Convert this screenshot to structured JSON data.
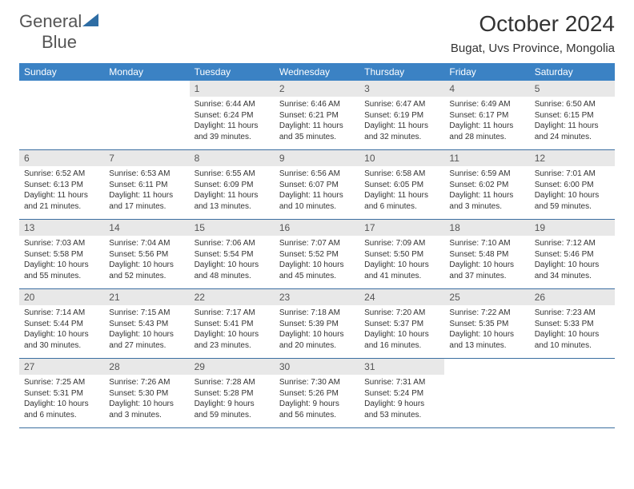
{
  "brand": {
    "text1": "General",
    "text2": "Blue"
  },
  "title": "October 2024",
  "location": "Bugat, Uvs Province, Mongolia",
  "colors": {
    "header_bg": "#3b82c4",
    "header_text": "#ffffff",
    "daynum_bg": "#e8e8e8",
    "border": "#3b6ea0"
  },
  "day_names": [
    "Sunday",
    "Monday",
    "Tuesday",
    "Wednesday",
    "Thursday",
    "Friday",
    "Saturday"
  ],
  "weeks": [
    [
      null,
      null,
      {
        "n": "1",
        "sr": "Sunrise: 6:44 AM",
        "ss": "Sunset: 6:24 PM",
        "dl": "Daylight: 11 hours and 39 minutes."
      },
      {
        "n": "2",
        "sr": "Sunrise: 6:46 AM",
        "ss": "Sunset: 6:21 PM",
        "dl": "Daylight: 11 hours and 35 minutes."
      },
      {
        "n": "3",
        "sr": "Sunrise: 6:47 AM",
        "ss": "Sunset: 6:19 PM",
        "dl": "Daylight: 11 hours and 32 minutes."
      },
      {
        "n": "4",
        "sr": "Sunrise: 6:49 AM",
        "ss": "Sunset: 6:17 PM",
        "dl": "Daylight: 11 hours and 28 minutes."
      },
      {
        "n": "5",
        "sr": "Sunrise: 6:50 AM",
        "ss": "Sunset: 6:15 PM",
        "dl": "Daylight: 11 hours and 24 minutes."
      }
    ],
    [
      {
        "n": "6",
        "sr": "Sunrise: 6:52 AM",
        "ss": "Sunset: 6:13 PM",
        "dl": "Daylight: 11 hours and 21 minutes."
      },
      {
        "n": "7",
        "sr": "Sunrise: 6:53 AM",
        "ss": "Sunset: 6:11 PM",
        "dl": "Daylight: 11 hours and 17 minutes."
      },
      {
        "n": "8",
        "sr": "Sunrise: 6:55 AM",
        "ss": "Sunset: 6:09 PM",
        "dl": "Daylight: 11 hours and 13 minutes."
      },
      {
        "n": "9",
        "sr": "Sunrise: 6:56 AM",
        "ss": "Sunset: 6:07 PM",
        "dl": "Daylight: 11 hours and 10 minutes."
      },
      {
        "n": "10",
        "sr": "Sunrise: 6:58 AM",
        "ss": "Sunset: 6:05 PM",
        "dl": "Daylight: 11 hours and 6 minutes."
      },
      {
        "n": "11",
        "sr": "Sunrise: 6:59 AM",
        "ss": "Sunset: 6:02 PM",
        "dl": "Daylight: 11 hours and 3 minutes."
      },
      {
        "n": "12",
        "sr": "Sunrise: 7:01 AM",
        "ss": "Sunset: 6:00 PM",
        "dl": "Daylight: 10 hours and 59 minutes."
      }
    ],
    [
      {
        "n": "13",
        "sr": "Sunrise: 7:03 AM",
        "ss": "Sunset: 5:58 PM",
        "dl": "Daylight: 10 hours and 55 minutes."
      },
      {
        "n": "14",
        "sr": "Sunrise: 7:04 AM",
        "ss": "Sunset: 5:56 PM",
        "dl": "Daylight: 10 hours and 52 minutes."
      },
      {
        "n": "15",
        "sr": "Sunrise: 7:06 AM",
        "ss": "Sunset: 5:54 PM",
        "dl": "Daylight: 10 hours and 48 minutes."
      },
      {
        "n": "16",
        "sr": "Sunrise: 7:07 AM",
        "ss": "Sunset: 5:52 PM",
        "dl": "Daylight: 10 hours and 45 minutes."
      },
      {
        "n": "17",
        "sr": "Sunrise: 7:09 AM",
        "ss": "Sunset: 5:50 PM",
        "dl": "Daylight: 10 hours and 41 minutes."
      },
      {
        "n": "18",
        "sr": "Sunrise: 7:10 AM",
        "ss": "Sunset: 5:48 PM",
        "dl": "Daylight: 10 hours and 37 minutes."
      },
      {
        "n": "19",
        "sr": "Sunrise: 7:12 AM",
        "ss": "Sunset: 5:46 PM",
        "dl": "Daylight: 10 hours and 34 minutes."
      }
    ],
    [
      {
        "n": "20",
        "sr": "Sunrise: 7:14 AM",
        "ss": "Sunset: 5:44 PM",
        "dl": "Daylight: 10 hours and 30 minutes."
      },
      {
        "n": "21",
        "sr": "Sunrise: 7:15 AM",
        "ss": "Sunset: 5:43 PM",
        "dl": "Daylight: 10 hours and 27 minutes."
      },
      {
        "n": "22",
        "sr": "Sunrise: 7:17 AM",
        "ss": "Sunset: 5:41 PM",
        "dl": "Daylight: 10 hours and 23 minutes."
      },
      {
        "n": "23",
        "sr": "Sunrise: 7:18 AM",
        "ss": "Sunset: 5:39 PM",
        "dl": "Daylight: 10 hours and 20 minutes."
      },
      {
        "n": "24",
        "sr": "Sunrise: 7:20 AM",
        "ss": "Sunset: 5:37 PM",
        "dl": "Daylight: 10 hours and 16 minutes."
      },
      {
        "n": "25",
        "sr": "Sunrise: 7:22 AM",
        "ss": "Sunset: 5:35 PM",
        "dl": "Daylight: 10 hours and 13 minutes."
      },
      {
        "n": "26",
        "sr": "Sunrise: 7:23 AM",
        "ss": "Sunset: 5:33 PM",
        "dl": "Daylight: 10 hours and 10 minutes."
      }
    ],
    [
      {
        "n": "27",
        "sr": "Sunrise: 7:25 AM",
        "ss": "Sunset: 5:31 PM",
        "dl": "Daylight: 10 hours and 6 minutes."
      },
      {
        "n": "28",
        "sr": "Sunrise: 7:26 AM",
        "ss": "Sunset: 5:30 PM",
        "dl": "Daylight: 10 hours and 3 minutes."
      },
      {
        "n": "29",
        "sr": "Sunrise: 7:28 AM",
        "ss": "Sunset: 5:28 PM",
        "dl": "Daylight: 9 hours and 59 minutes."
      },
      {
        "n": "30",
        "sr": "Sunrise: 7:30 AM",
        "ss": "Sunset: 5:26 PM",
        "dl": "Daylight: 9 hours and 56 minutes."
      },
      {
        "n": "31",
        "sr": "Sunrise: 7:31 AM",
        "ss": "Sunset: 5:24 PM",
        "dl": "Daylight: 9 hours and 53 minutes."
      },
      null,
      null
    ]
  ]
}
